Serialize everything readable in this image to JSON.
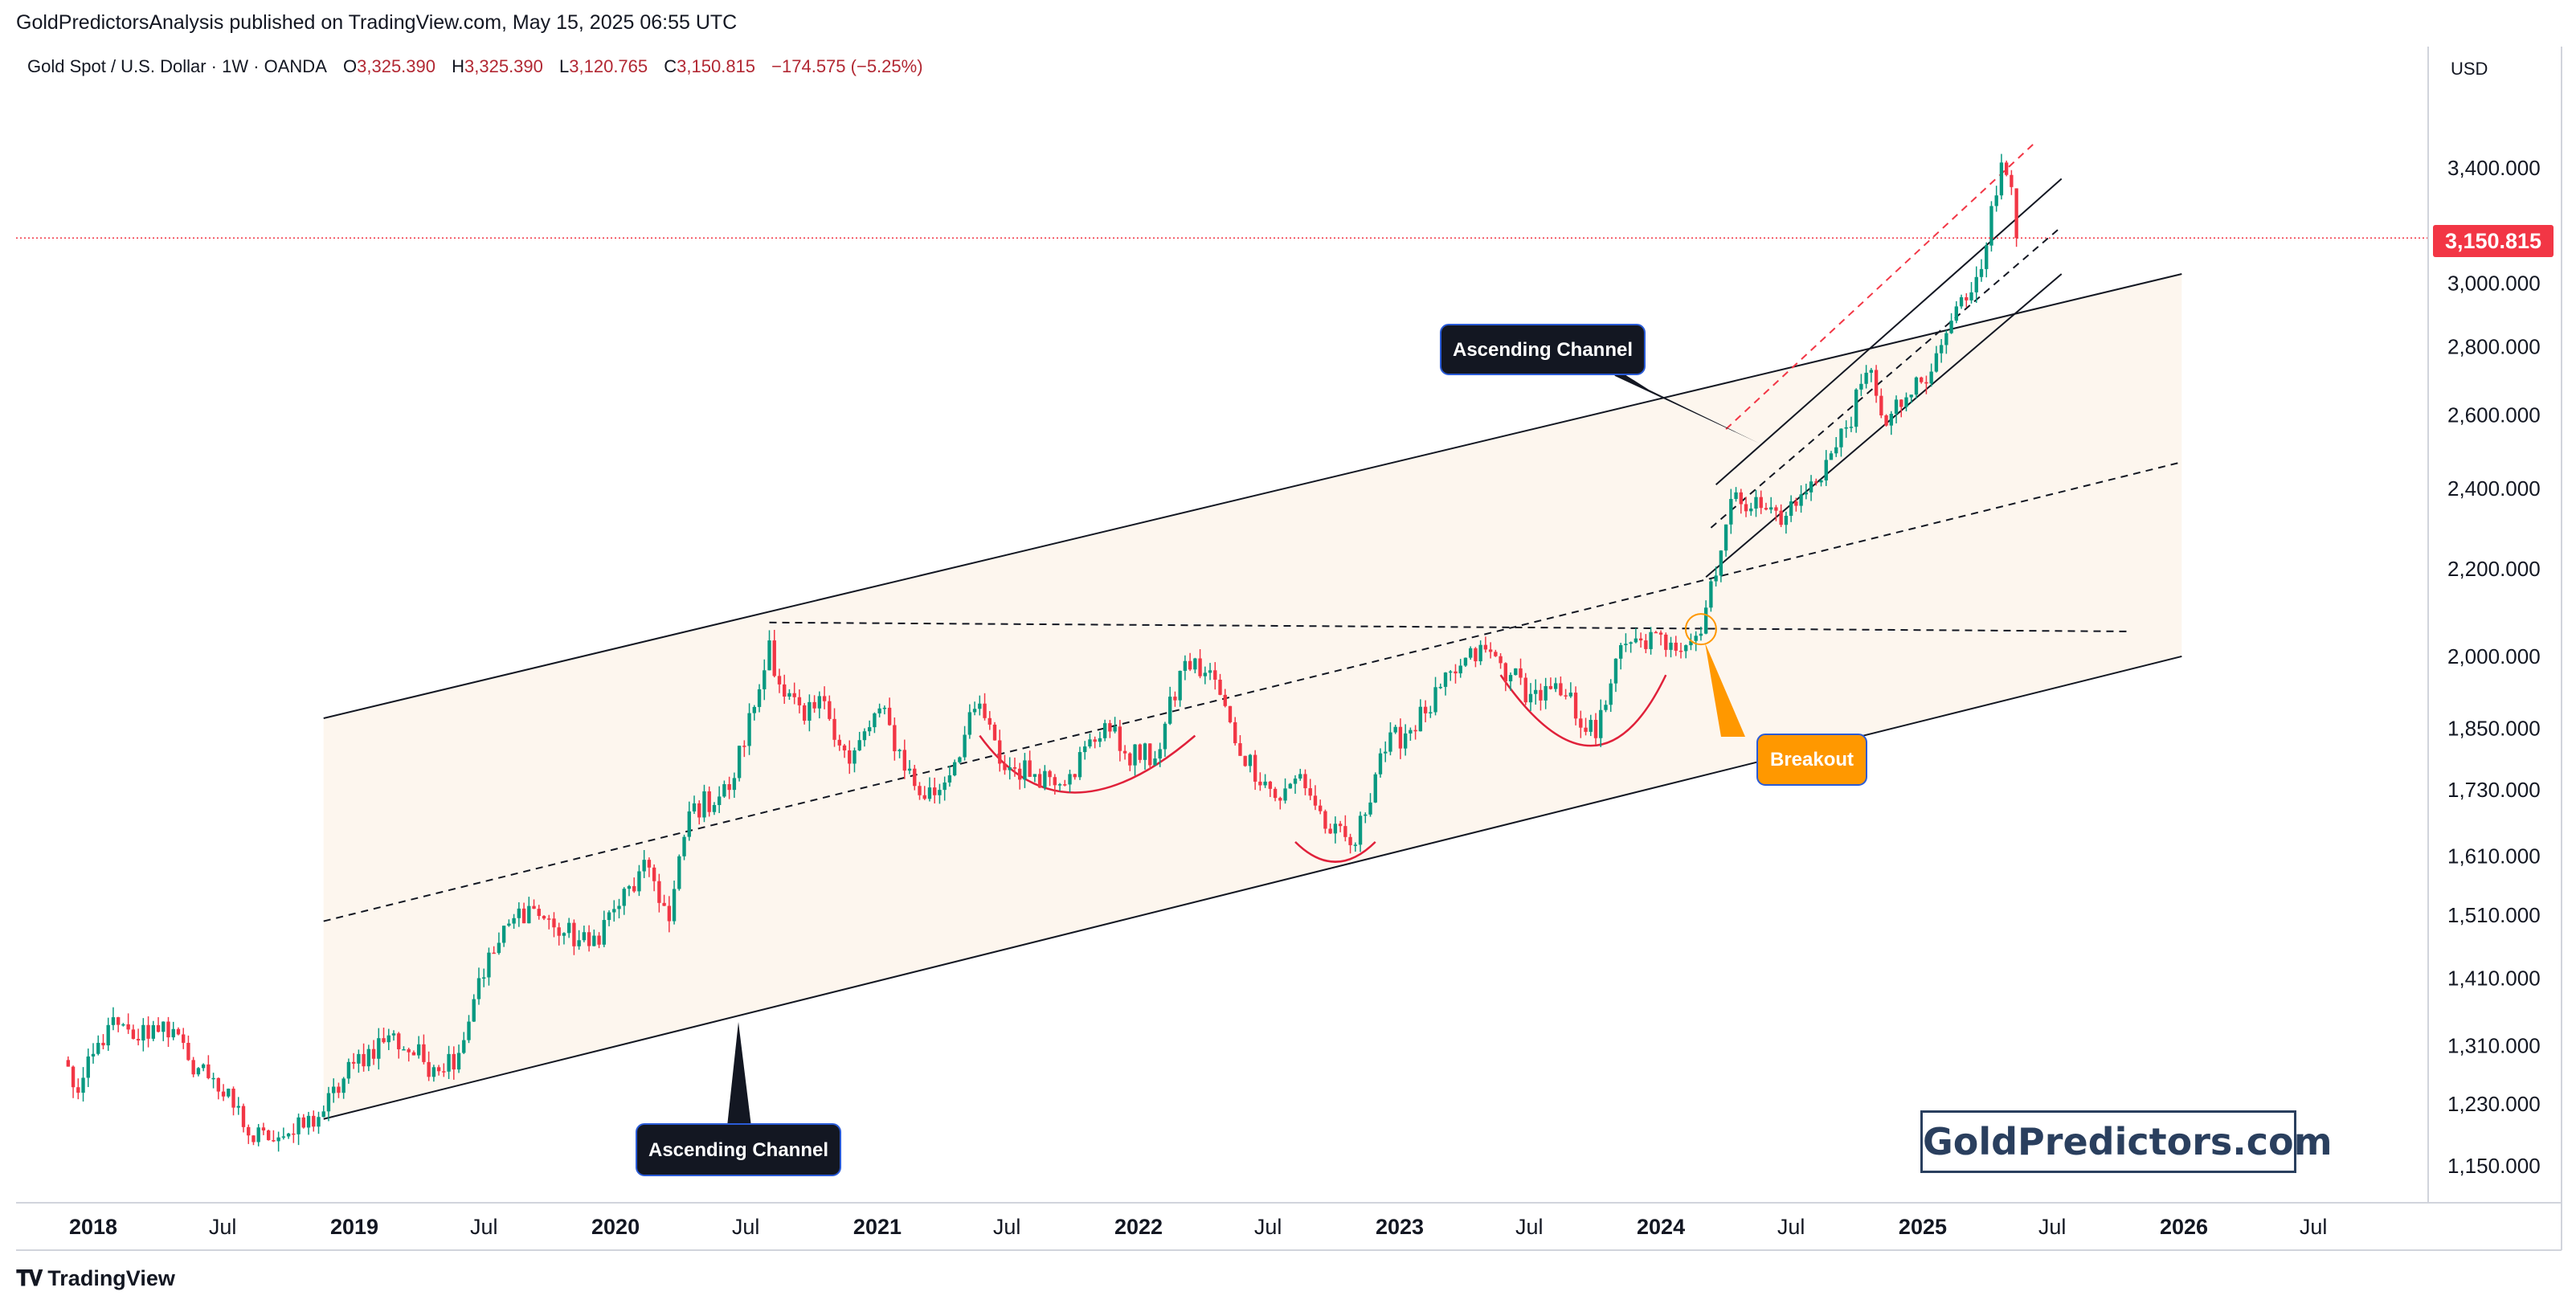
{
  "header": {
    "publisher": "GoldPredictorsAnalysis published on TradingView.com, May 15, 2025 06:55 UTC"
  },
  "legend": {
    "symbol": "Gold Spot / U.S. Dollar · 1W · OANDA",
    "open_label": "O",
    "open_value": "3,325.390",
    "high_label": "H",
    "high_value": "3,325.390",
    "low_label": "L",
    "low_value": "3,120.765",
    "close_label": "C",
    "close_value": "3,150.815",
    "change": "−174.575 (−5.25%)"
  },
  "price_axis": {
    "currency": "USD",
    "last_price": "3,150.815",
    "last_price_color": "#f23645",
    "tick_labels": [
      "3,400.000",
      "3,000.000",
      "2,800.000",
      "2,600.000",
      "2,400.000",
      "2,200.000",
      "2,000.000",
      "1,850.000",
      "1,730.000",
      "1,610.000",
      "1,510.000",
      "1,410.000",
      "1,310.000",
      "1,230.000",
      "1,150.000"
    ]
  },
  "time_axis": {
    "labels": [
      "2018",
      "Jul",
      "2019",
      "Jul",
      "2020",
      "Jul",
      "2021",
      "Jul",
      "2022",
      "Jul",
      "2023",
      "Jul",
      "2024",
      "Jul",
      "2025",
      "Jul",
      "2026",
      "Jul"
    ]
  },
  "annotations": {
    "ascending_channel_top": "Ascending Channel",
    "ascending_channel_bottom": "Ascending Channel",
    "breakout": "Breakout",
    "breakout_color": "#ff9800"
  },
  "watermark": "GoldPredictors.com",
  "footer": {
    "brand": "TradingView"
  },
  "colors": {
    "up": "#089981",
    "down": "#f23645",
    "channel_fill": "#fdf6ee",
    "cup": "#e0213a"
  },
  "chart_data": {
    "type": "candlestick",
    "scale": "log",
    "ylim": [
      1100,
      3650
    ],
    "grid": false,
    "timeframe": "1W",
    "anchors": [
      [
        "2017-11-20",
        1290
      ],
      [
        "2017-12-11",
        1245
      ],
      [
        "2018-01-22",
        1340
      ],
      [
        "2018-02-26",
        1320
      ],
      [
        "2018-04-09",
        1345
      ],
      [
        "2018-05-14",
        1290
      ],
      [
        "2018-06-18",
        1265
      ],
      [
        "2018-07-16",
        1225
      ],
      [
        "2018-08-13",
        1180
      ],
      [
        "2018-08-27",
        1195
      ],
      [
        "2018-10-08",
        1190
      ],
      [
        "2018-11-19",
        1220
      ],
      [
        "2018-12-31",
        1285
      ],
      [
        "2019-02-18",
        1325
      ],
      [
        "2019-04-22",
        1280
      ],
      [
        "2019-05-27",
        1300
      ],
      [
        "2019-06-24",
        1410
      ],
      [
        "2019-08-12",
        1505
      ],
      [
        "2019-09-02",
        1525
      ],
      [
        "2019-10-07",
        1490
      ],
      [
        "2019-11-25",
        1460
      ],
      [
        "2019-12-30",
        1520
      ],
      [
        "2020-02-17",
        1590
      ],
      [
        "2020-03-16",
        1500
      ],
      [
        "2020-04-13",
        1690
      ],
      [
        "2020-06-08",
        1730
      ],
      [
        "2020-07-27",
        1970
      ],
      [
        "2020-08-03",
        2035
      ],
      [
        "2020-08-17",
        1940
      ],
      [
        "2020-09-21",
        1865
      ],
      [
        "2020-10-19",
        1905
      ],
      [
        "2020-11-23",
        1780
      ],
      [
        "2021-01-04",
        1890
      ],
      [
        "2021-03-01",
        1720
      ],
      [
        "2021-03-29",
        1730
      ],
      [
        "2021-05-24",
        1900
      ],
      [
        "2021-06-21",
        1780
      ],
      [
        "2021-08-09",
        1760
      ],
      [
        "2021-09-27",
        1760
      ],
      [
        "2021-11-15",
        1860
      ],
      [
        "2021-12-13",
        1800
      ],
      [
        "2022-01-24",
        1790
      ],
      [
        "2022-03-07",
        1990
      ],
      [
        "2022-04-18",
        1950
      ],
      [
        "2022-05-16",
        1820
      ],
      [
        "2022-07-18",
        1710
      ],
      [
        "2022-08-15",
        1760
      ],
      [
        "2022-09-26",
        1650
      ],
      [
        "2022-10-31",
        1630
      ],
      [
        "2022-12-05",
        1800
      ],
      [
        "2023-02-06",
        1880
      ],
      [
        "2023-03-27",
        1980
      ],
      [
        "2023-05-01",
        2015
      ],
      [
        "2023-06-05",
        1960
      ],
      [
        "2023-07-03",
        1920
      ],
      [
        "2023-08-21",
        1915
      ],
      [
        "2023-10-02",
        1830
      ],
      [
        "2023-10-30",
        1995
      ],
      [
        "2023-12-04",
        2035
      ],
      [
        "2024-01-15",
        2030
      ],
      [
        "2024-02-26",
        2050
      ],
      [
        "2024-03-11",
        2170
      ],
      [
        "2024-04-15",
        2390
      ],
      [
        "2024-05-20",
        2350
      ],
      [
        "2024-06-24",
        2330
      ],
      [
        "2024-07-22",
        2390
      ],
      [
        "2024-09-02",
        2510
      ],
      [
        "2024-10-21",
        2730
      ],
      [
        "2024-11-11",
        2570
      ],
      [
        "2024-12-09",
        2650
      ],
      [
        "2025-01-06",
        2690
      ],
      [
        "2025-02-10",
        2880
      ],
      [
        "2025-03-17",
        3020
      ],
      [
        "2025-04-14",
        3300
      ],
      [
        "2025-04-21",
        3420
      ],
      [
        "2025-05-05",
        3330
      ],
      [
        "2025-05-12",
        3150.815
      ]
    ],
    "last_candle": {
      "open": 3325.39,
      "high": 3325.39,
      "low": 3120.765,
      "close": 3150.815
    },
    "trendlines": [
      {
        "name": "outer-channel-upper",
        "from": [
          "2018-11-19",
          1870
        ],
        "to": [
          "2025-12-29",
          3030
        ]
      },
      {
        "name": "outer-channel-lower",
        "from": [
          "2018-11-19",
          1210
        ],
        "to": [
          "2025-12-29",
          2000
        ]
      },
      {
        "name": "outer-channel-midline",
        "from": [
          "2018-11-19",
          1500
        ],
        "to": [
          "2025-12-29",
          2470
        ],
        "style": "dashed"
      },
      {
        "name": "neckline",
        "from": [
          "2020-08-03",
          2075
        ],
        "to": [
          "2025-10-13",
          2055
        ],
        "style": "dashed"
      },
      {
        "name": "inner-channel-upper",
        "from": [
          "2024-03-18",
          2410
        ],
        "to": [
          "2025-07-14",
          3360
        ]
      },
      {
        "name": "inner-channel-lower",
        "from": [
          "2024-03-04",
          2180
        ],
        "to": [
          "2025-07-14",
          3030
        ]
      },
      {
        "name": "inner-channel-midline",
        "from": [
          "2024-03-11",
          2300
        ],
        "to": [
          "2025-07-14",
          3190
        ],
        "style": "dashed"
      },
      {
        "name": "extension-line",
        "from": [
          "2024-04-01",
          2560
        ],
        "to": [
          "2025-06-09",
          3500
        ],
        "style": "dashed",
        "color": "#f23645"
      }
    ],
    "cups": [
      {
        "from": [
          "2021-05-24",
          1835
        ],
        "bottom": [
          "2021-10-04",
          1725
        ],
        "to": [
          "2022-03-21",
          1835
        ]
      },
      {
        "from": [
          "2022-08-08",
          1635
        ],
        "bottom": [
          "2022-10-03",
          1600
        ],
        "to": [
          "2022-11-28",
          1635
        ]
      },
      {
        "from": [
          "2023-05-22",
          1960
        ],
        "bottom": [
          "2023-09-25",
          1815
        ],
        "to": [
          "2024-01-08",
          1960
        ]
      }
    ],
    "breakout_point": [
      "2024-02-26",
      2060
    ]
  }
}
